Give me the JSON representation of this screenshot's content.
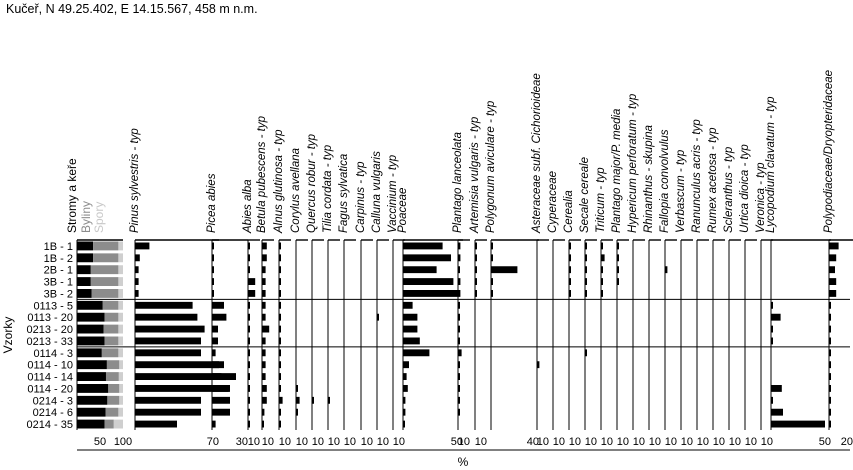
{
  "site_label": "Kučeř, N 49.25.402, E 14.15.567, 458 m n.m.",
  "chart_data": {
    "type": "bar",
    "subtype": "pollen-percentage-diagram",
    "y_axis_label": "Vzorky",
    "x_axis_label": "%",
    "samples": [
      "1B - 1",
      "1B - 2",
      "2B - 1",
      "3B - 1",
      "3B - 2",
      "0113 - 5",
      "0113 - 20",
      "0213 - 20",
      "0213 - 33",
      "0114 - 3",
      "0114 - 10",
      "0114 - 14",
      "0114 - 20",
      "0214 - 3",
      "0214 - 6",
      "0214 - 35"
    ],
    "group_separators_after": [
      "3B - 2",
      "0213 - 33"
    ],
    "summary_panel": {
      "labels": [
        "Stromy a keře",
        "Byliny",
        "Spory"
      ],
      "label_colors": [
        "#000000",
        "#8c8c8c",
        "#c8c8c8"
      ],
      "ticks": [
        "50",
        "100"
      ],
      "trees": [
        35,
        35,
        30,
        30,
        32,
        56,
        60,
        58,
        60,
        54,
        65,
        63,
        68,
        66,
        62,
        60
      ],
      "herbs": [
        55,
        55,
        60,
        60,
        58,
        34,
        30,
        32,
        30,
        36,
        27,
        28,
        24,
        26,
        28,
        20
      ]
    },
    "taxa": [
      {
        "name": "Pinus sylvestris - typ",
        "ticks": [
          "70"
        ],
        "scale": 70,
        "values": [
          12,
          4,
          3,
          3,
          3,
          48,
          52,
          58,
          55,
          55,
          70,
          72,
          78,
          55,
          55,
          35
        ]
      },
      {
        "name": "Picea abies",
        "ticks": [
          "30"
        ],
        "scale": 30,
        "values": [
          1,
          1,
          1,
          1,
          1,
          10,
          12,
          5,
          5,
          3,
          10,
          20,
          15,
          15,
          15,
          3
        ]
      },
      {
        "name": "Abies alba",
        "ticks": [
          "10"
        ],
        "scale": 10,
        "values": [
          0.5,
          0.5,
          0.5,
          6,
          6,
          0.5,
          0.5,
          1,
          0.5,
          0.5,
          0.5,
          1,
          1,
          1,
          0.5,
          0.5
        ]
      },
      {
        "name": "Betula pubescens - typ",
        "ticks": [
          "10"
        ],
        "scale": 10,
        "values": [
          4,
          4,
          3,
          3,
          3,
          3,
          3,
          6,
          3,
          3,
          3,
          3,
          4,
          4,
          2,
          1
        ]
      },
      {
        "name": "Alnus glutinosa - typ",
        "ticks": [
          "10"
        ],
        "scale": 10,
        "values": [
          0.5,
          0.5,
          0.5,
          0.5,
          0.5,
          0.5,
          0.5,
          1,
          0.5,
          0.5,
          0.5,
          0.5,
          0.5,
          3,
          0.5,
          0.5
        ]
      },
      {
        "name": "Corylus avellana",
        "ticks": [
          "10"
        ],
        "scale": 10,
        "values": [
          0,
          0,
          0,
          0,
          0,
          0,
          0,
          0,
          0,
          0,
          0,
          0,
          0.5,
          3,
          0.5,
          0
        ]
      },
      {
        "name": "Quercus robur - typ",
        "ticks": [
          "10"
        ],
        "scale": 10,
        "values": [
          0,
          0,
          0,
          0,
          0,
          0,
          0,
          0,
          0,
          0,
          0,
          0,
          0,
          1,
          0,
          0
        ]
      },
      {
        "name": "Tilia cordata - typ",
        "ticks": [
          "10"
        ],
        "scale": 10,
        "values": [
          0,
          0,
          0,
          0,
          0,
          0,
          0,
          0,
          0,
          0,
          0,
          0,
          0,
          0.5,
          0,
          0
        ]
      },
      {
        "name": "Fagus sylvatica",
        "ticks": [
          "10"
        ],
        "scale": 10,
        "values": [
          0,
          0,
          0,
          0,
          0,
          0,
          0,
          0,
          0,
          0,
          0,
          0,
          0,
          0,
          0,
          0
        ]
      },
      {
        "name": "Carpinus - typ",
        "ticks": [
          "10"
        ],
        "scale": 10,
        "values": [
          0,
          0,
          0,
          0,
          0,
          0,
          0,
          0,
          0,
          0,
          0,
          0,
          0,
          0,
          0,
          0
        ]
      },
      {
        "name": "Calluna vulgaris",
        "ticks": [
          "10"
        ],
        "scale": 10,
        "values": [
          0,
          0,
          0,
          0,
          0,
          0,
          0.5,
          0,
          0,
          0,
          0,
          0,
          0,
          0,
          0,
          0
        ]
      },
      {
        "name": "Vaccinium - typ",
        "ticks": [
          "10"
        ],
        "scale": 10,
        "values": [
          0,
          0,
          0,
          0,
          0,
          0,
          0,
          0,
          0,
          0,
          0,
          0,
          0,
          0,
          0,
          0
        ]
      },
      {
        "name": "Poaceae",
        "ticks": [
          "50"
        ],
        "scale": 50,
        "values": [
          33,
          40,
          28,
          42,
          46,
          8,
          12,
          12,
          14,
          22,
          5,
          3,
          4,
          2,
          2,
          1
        ]
      },
      {
        "name": "Plantago lanceolata",
        "ticks": [
          "10"
        ],
        "scale": 10,
        "values": [
          2,
          2,
          1,
          2,
          2,
          1,
          0.5,
          0.5,
          0.5,
          3,
          0.5,
          0.5,
          0.5,
          0.5,
          0.5,
          0
        ]
      },
      {
        "name": "Artemisia vulgaris - typ",
        "ticks": [
          "10"
        ],
        "scale": 10,
        "values": [
          1,
          1,
          1,
          1,
          1,
          0,
          0,
          0,
          0,
          0,
          0,
          0,
          0,
          0,
          0,
          0
        ]
      },
      {
        "name": "Polygonum aviculare - typ",
        "ticks": [
          "40"
        ],
        "scale": 40,
        "values": [
          0.5,
          0.5,
          22,
          0.5,
          0.5,
          0,
          0,
          0,
          0,
          0,
          0,
          0,
          0,
          0,
          0,
          0
        ]
      },
      {
        "name": "Asteraceae subf. Cichorioideae",
        "ticks": [
          "10"
        ],
        "scale": 10,
        "values": [
          0,
          0,
          0,
          0,
          0,
          0,
          0,
          0,
          0,
          0,
          2,
          0,
          0,
          0,
          0,
          0
        ]
      },
      {
        "name": "Cyperaceae",
        "ticks": [
          "10"
        ],
        "scale": 10,
        "values": [
          0,
          0,
          0,
          0,
          0,
          0,
          0,
          0,
          0,
          0,
          0,
          0,
          0,
          0,
          0,
          0
        ]
      },
      {
        "name": "Cerealia",
        "ticks": [
          "10"
        ],
        "scale": 10,
        "values": [
          0.5,
          0.5,
          0.5,
          0.5,
          0.5,
          0,
          0,
          0,
          0,
          0,
          0,
          0,
          0,
          0,
          0,
          0
        ]
      },
      {
        "name": "Secale cereale",
        "ticks": [
          "10"
        ],
        "scale": 10,
        "values": [
          1,
          1,
          0.5,
          0.5,
          0.5,
          0,
          0,
          0,
          0,
          1,
          0,
          0,
          0,
          0,
          0,
          0
        ]
      },
      {
        "name": "Triticum - typ",
        "ticks": [
          "10"
        ],
        "scale": 10,
        "values": [
          0.5,
          3,
          0.5,
          0.5,
          0.5,
          0,
          0,
          0,
          0,
          0,
          0,
          0,
          0,
          0,
          0,
          0
        ]
      },
      {
        "name": "Plantago major/P. media",
        "ticks": [
          "10"
        ],
        "scale": 10,
        "values": [
          0.5,
          0.5,
          0.5,
          0.5,
          0,
          0,
          0,
          0,
          0,
          0,
          0,
          0,
          0,
          0,
          0,
          0
        ]
      },
      {
        "name": "Hypericum perforatum - typ",
        "ticks": [
          "10"
        ],
        "scale": 10,
        "values": [
          0,
          0,
          0,
          0,
          0,
          0,
          0,
          0,
          0,
          0,
          0,
          0,
          0,
          0,
          0,
          0
        ]
      },
      {
        "name": "Rhinanthus - skupina",
        "ticks": [
          "10"
        ],
        "scale": 10,
        "values": [
          0,
          0,
          0,
          0,
          0,
          0,
          0,
          0,
          0,
          0,
          0,
          0,
          0,
          0,
          0,
          0
        ]
      },
      {
        "name": "Fallopia convolvulus",
        "ticks": [
          "10"
        ],
        "scale": 10,
        "values": [
          0,
          0,
          2,
          0,
          0,
          0,
          0,
          0,
          0,
          0,
          0,
          0,
          0,
          0,
          0,
          0
        ]
      },
      {
        "name": "Verbascum - typ",
        "ticks": [
          "10"
        ],
        "scale": 10,
        "values": [
          0,
          0,
          0,
          0,
          0,
          0,
          0,
          0,
          0,
          0,
          0,
          0,
          0,
          0,
          0,
          0
        ]
      },
      {
        "name": "Ranunculus acris - typ",
        "ticks": [
          "10"
        ],
        "scale": 10,
        "values": [
          0,
          0,
          0,
          0,
          0,
          0,
          0,
          0,
          0,
          0,
          0,
          0,
          0,
          0,
          0,
          0
        ]
      },
      {
        "name": "Rumex acetosa - typ",
        "ticks": [
          "10"
        ],
        "scale": 10,
        "values": [
          0,
          0,
          0,
          0,
          0,
          0,
          0,
          0,
          0,
          0,
          0,
          0,
          0,
          0,
          0,
          0
        ]
      },
      {
        "name": "Scleranthus - typ",
        "ticks": [
          "10"
        ],
        "scale": 10,
        "values": [
          0,
          0,
          0,
          0,
          0,
          0,
          0,
          0,
          0,
          0,
          0,
          0,
          0,
          0,
          0,
          0
        ]
      },
      {
        "name": "Urtica dioica - typ",
        "ticks": [
          "10"
        ],
        "scale": 10,
        "values": [
          0,
          0,
          0,
          0,
          0,
          0,
          0,
          0,
          0,
          0,
          0,
          0,
          0,
          0,
          0,
          0
        ]
      },
      {
        "name": "Veronica - typ",
        "ticks": [
          "10"
        ],
        "scale": 10,
        "values": [
          0,
          0,
          0,
          0,
          0,
          0,
          0,
          0,
          0,
          0,
          0,
          0,
          0,
          0,
          0,
          0
        ]
      },
      {
        "name": "Lycopodium clavatum - typ",
        "ticks": [
          "50"
        ],
        "scale": 50,
        "values": [
          0,
          0,
          0,
          0,
          0,
          1,
          8,
          0.5,
          0.5,
          0,
          0,
          0,
          9,
          0.5,
          10,
          45
        ]
      },
      {
        "name": "Polypodiaceae/Dryopteridaceae",
        "ticks": [
          "20"
        ],
        "scale": 20,
        "values": [
          8,
          6,
          5,
          6,
          6,
          1,
          1,
          1,
          1,
          1,
          1,
          1,
          1,
          1,
          1,
          1
        ]
      }
    ]
  }
}
